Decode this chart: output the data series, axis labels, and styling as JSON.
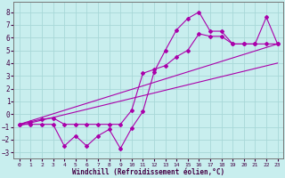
{
  "xlabel": "Windchill (Refroidissement éolien,°C)",
  "bg_color": "#c8eeee",
  "grid_color": "#a8d8d8",
  "line_color": "#aa00aa",
  "xlim": [
    -0.5,
    23.5
  ],
  "ylim": [
    -3.5,
    8.8
  ],
  "yticks": [
    -3,
    -2,
    -1,
    0,
    1,
    2,
    3,
    4,
    5,
    6,
    7,
    8
  ],
  "xticks": [
    0,
    1,
    2,
    3,
    4,
    5,
    6,
    7,
    8,
    9,
    10,
    11,
    12,
    13,
    14,
    15,
    16,
    17,
    18,
    19,
    20,
    21,
    22,
    23
  ],
  "line1_x": [
    0,
    1,
    2,
    3,
    4,
    5,
    6,
    7,
    8,
    9,
    10,
    11,
    12,
    13,
    14,
    15,
    16,
    17,
    18,
    19,
    20,
    21,
    22,
    23
  ],
  "line1_y": [
    -0.8,
    -0.8,
    -0.8,
    -0.8,
    -2.5,
    -1.7,
    -2.5,
    -1.7,
    -1.2,
    -2.7,
    -1.1,
    0.2,
    3.3,
    5.0,
    6.6,
    7.5,
    8.0,
    6.5,
    6.5,
    5.5,
    5.5,
    5.5,
    7.6,
    5.5
  ],
  "line2_x": [
    0,
    1,
    2,
    3,
    4,
    5,
    6,
    7,
    8,
    9,
    10,
    11,
    12,
    13,
    14,
    15,
    16,
    17,
    18,
    19,
    20,
    21,
    22,
    23
  ],
  "line2_y": [
    -0.8,
    -0.6,
    -0.4,
    -0.3,
    -0.8,
    -0.8,
    -0.8,
    -0.8,
    -0.8,
    -0.8,
    0.3,
    3.2,
    3.5,
    3.8,
    4.5,
    5.0,
    6.3,
    6.1,
    6.1,
    5.5,
    5.5,
    5.5,
    5.5,
    5.5
  ],
  "line3_x": [
    0,
    23
  ],
  "line3_y": [
    -0.8,
    5.5
  ],
  "line4_x": [
    0,
    23
  ],
  "line4_y": [
    -0.9,
    4.0
  ]
}
